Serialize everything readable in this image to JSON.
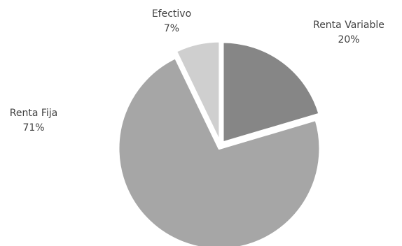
{
  "chart_data": {
    "type": "pie",
    "title": "",
    "slices": [
      {
        "label": "Renta Variable",
        "value": 20,
        "display": "20%",
        "color": "#868686"
      },
      {
        "label": "Renta Fija",
        "value": 71,
        "display": "71%",
        "color": "#a6a6a6"
      },
      {
        "label": "Efectivo",
        "value": 7,
        "display": "7%",
        "color": "#cfcfcf"
      }
    ],
    "start": "12 o'clock, clockwise",
    "exploded": true,
    "legend": "none",
    "data_labels": "outside"
  }
}
